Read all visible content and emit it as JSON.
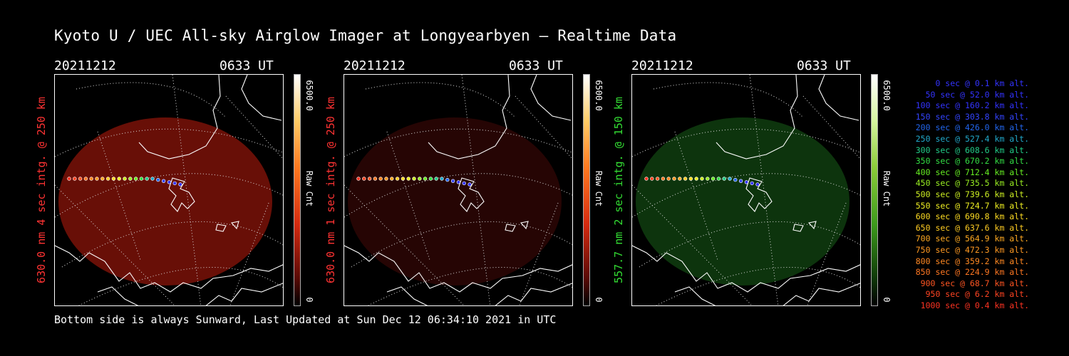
{
  "title": "Kyoto U / UEC All-sky Airglow Imager at Longyearbyen — Realtime Data",
  "footer": "Bottom side is always Sunward, Last Updated at Sun Dec 12 06:34:10 2021 in UTC",
  "panels": [
    {
      "date": "20211212",
      "time": "0633 UT",
      "side_label": "630.0 nm 4 sec intg. @ 250 km",
      "label_color": "#ff3333",
      "colorbar": {
        "max": "6500.0",
        "min": "0",
        "unit": "Raw Cnt",
        "gradient": "linear-gradient(to bottom,#ffffff 0%,#ffcc66 20%,#ff7a20 40%,#d42a10 65%,#5a0a05 88%,#000 100%)"
      },
      "glow_color": "#7a1208",
      "glow_opacity": 0.85
    },
    {
      "date": "20211212",
      "time": "0633 UT",
      "side_label": "630.0 nm 1 sec intg. @ 250 km",
      "label_color": "#ff3333",
      "colorbar": {
        "max": "6500.0",
        "min": "0",
        "unit": "Raw Cnt",
        "gradient": "linear-gradient(to bottom,#ffffff 0%,#ffcc66 20%,#ff7a20 40%,#d42a10 65%,#5a0a05 88%,#000 100%)"
      },
      "glow_color": "#2a0604",
      "glow_opacity": 0.9
    },
    {
      "date": "20211212",
      "time": "0633 UT",
      "side_label": "557.7 nm 2 sec intg. @ 150 km",
      "label_color": "#33dd33",
      "colorbar": {
        "max": "6500.0",
        "min": "0",
        "unit": "Raw Cnt",
        "gradient": "linear-gradient(to bottom,#ffffff 0%,#d6f5a0 20%,#8ccc3a 40%,#3c9a1c 65%,#0f3a08 88%,#000 100%)"
      },
      "glow_color": "#0e3a0e",
      "glow_opacity": 0.9
    }
  ],
  "legend": [
    {
      "text": "0 sec @    0.1 km alt.",
      "color": "#3333ff"
    },
    {
      "text": "50 sec @   52.0 km alt.",
      "color": "#3333ff"
    },
    {
      "text": "100 sec @  160.2 km alt.",
      "color": "#3333ff"
    },
    {
      "text": "150 sec @  303.8 km alt.",
      "color": "#3344ff"
    },
    {
      "text": "200 sec @  426.0 km alt.",
      "color": "#2266ee"
    },
    {
      "text": "250 sec @  527.4 km alt.",
      "color": "#22aacc"
    },
    {
      "text": "300 sec @  608.6 km alt.",
      "color": "#22cc88"
    },
    {
      "text": "350 sec @  670.2 km alt.",
      "color": "#33dd44"
    },
    {
      "text": "400 sec @  712.4 km alt.",
      "color": "#66ee22"
    },
    {
      "text": "450 sec @  735.5 km alt.",
      "color": "#99ee22"
    },
    {
      "text": "500 sec @  739.6 km alt.",
      "color": "#ccee22"
    },
    {
      "text": "550 sec @  724.7 km alt.",
      "color": "#eeee22"
    },
    {
      "text": "600 sec @  690.8 km alt.",
      "color": "#ffdd22"
    },
    {
      "text": "650 sec @  637.6 km alt.",
      "color": "#ffcc22"
    },
    {
      "text": "700 sec @  564.9 km alt.",
      "color": "#ffaa22"
    },
    {
      "text": "750 sec @  472.3 km alt.",
      "color": "#ff9922"
    },
    {
      "text": "800 sec @  359.2 km alt.",
      "color": "#ff8822"
    },
    {
      "text": "850 sec @  224.9 km alt.",
      "color": "#ff7722"
    },
    {
      "text": "900 sec @   68.7 km alt.",
      "color": "#ff5522"
    },
    {
      "text": "950 sec @    6.2 km alt.",
      "color": "#ff4422"
    },
    {
      "text": "1000 sec @    0.4 km alt.",
      "color": "#ff3322"
    }
  ]
}
